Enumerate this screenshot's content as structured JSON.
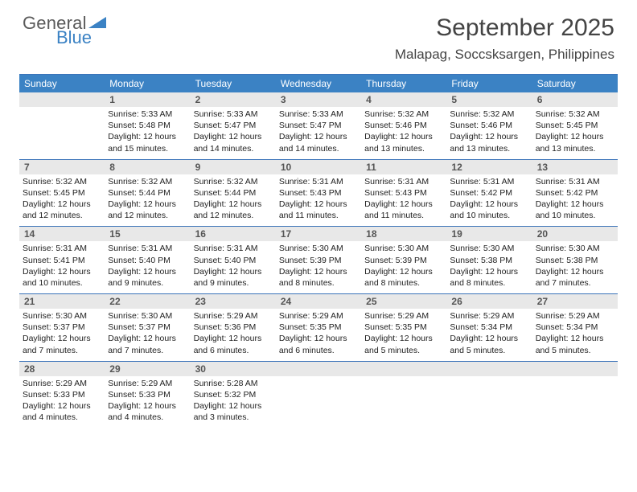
{
  "logo": {
    "word1": "General",
    "word2": "Blue",
    "shape_color": "#3b82c4",
    "word1_color": "#5a5a5a"
  },
  "title": "September 2025",
  "location": "Malapag, Soccsksargen, Philippines",
  "colors": {
    "header_bg": "#3b82c4",
    "header_text": "#ffffff",
    "daynum_bg": "#e8e8e8",
    "rule": "#3b73b9",
    "body_text": "#222222"
  },
  "font": {
    "title_size": 30,
    "location_size": 17,
    "header_size": 12,
    "body_size": 10.5
  },
  "day_names": [
    "Sunday",
    "Monday",
    "Tuesday",
    "Wednesday",
    "Thursday",
    "Friday",
    "Saturday"
  ],
  "weeks": [
    [
      {
        "n": "",
        "lines": []
      },
      {
        "n": "1",
        "lines": [
          "Sunrise: 5:33 AM",
          "Sunset: 5:48 PM",
          "Daylight: 12 hours and 15 minutes."
        ]
      },
      {
        "n": "2",
        "lines": [
          "Sunrise: 5:33 AM",
          "Sunset: 5:47 PM",
          "Daylight: 12 hours and 14 minutes."
        ]
      },
      {
        "n": "3",
        "lines": [
          "Sunrise: 5:33 AM",
          "Sunset: 5:47 PM",
          "Daylight: 12 hours and 14 minutes."
        ]
      },
      {
        "n": "4",
        "lines": [
          "Sunrise: 5:32 AM",
          "Sunset: 5:46 PM",
          "Daylight: 12 hours and 13 minutes."
        ]
      },
      {
        "n": "5",
        "lines": [
          "Sunrise: 5:32 AM",
          "Sunset: 5:46 PM",
          "Daylight: 12 hours and 13 minutes."
        ]
      },
      {
        "n": "6",
        "lines": [
          "Sunrise: 5:32 AM",
          "Sunset: 5:45 PM",
          "Daylight: 12 hours and 13 minutes."
        ]
      }
    ],
    [
      {
        "n": "7",
        "lines": [
          "Sunrise: 5:32 AM",
          "Sunset: 5:45 PM",
          "Daylight: 12 hours and 12 minutes."
        ]
      },
      {
        "n": "8",
        "lines": [
          "Sunrise: 5:32 AM",
          "Sunset: 5:44 PM",
          "Daylight: 12 hours and 12 minutes."
        ]
      },
      {
        "n": "9",
        "lines": [
          "Sunrise: 5:32 AM",
          "Sunset: 5:44 PM",
          "Daylight: 12 hours and 12 minutes."
        ]
      },
      {
        "n": "10",
        "lines": [
          "Sunrise: 5:31 AM",
          "Sunset: 5:43 PM",
          "Daylight: 12 hours and 11 minutes."
        ]
      },
      {
        "n": "11",
        "lines": [
          "Sunrise: 5:31 AM",
          "Sunset: 5:43 PM",
          "Daylight: 12 hours and 11 minutes."
        ]
      },
      {
        "n": "12",
        "lines": [
          "Sunrise: 5:31 AM",
          "Sunset: 5:42 PM",
          "Daylight: 12 hours and 10 minutes."
        ]
      },
      {
        "n": "13",
        "lines": [
          "Sunrise: 5:31 AM",
          "Sunset: 5:42 PM",
          "Daylight: 12 hours and 10 minutes."
        ]
      }
    ],
    [
      {
        "n": "14",
        "lines": [
          "Sunrise: 5:31 AM",
          "Sunset: 5:41 PM",
          "Daylight: 12 hours and 10 minutes."
        ]
      },
      {
        "n": "15",
        "lines": [
          "Sunrise: 5:31 AM",
          "Sunset: 5:40 PM",
          "Daylight: 12 hours and 9 minutes."
        ]
      },
      {
        "n": "16",
        "lines": [
          "Sunrise: 5:31 AM",
          "Sunset: 5:40 PM",
          "Daylight: 12 hours and 9 minutes."
        ]
      },
      {
        "n": "17",
        "lines": [
          "Sunrise: 5:30 AM",
          "Sunset: 5:39 PM",
          "Daylight: 12 hours and 8 minutes."
        ]
      },
      {
        "n": "18",
        "lines": [
          "Sunrise: 5:30 AM",
          "Sunset: 5:39 PM",
          "Daylight: 12 hours and 8 minutes."
        ]
      },
      {
        "n": "19",
        "lines": [
          "Sunrise: 5:30 AM",
          "Sunset: 5:38 PM",
          "Daylight: 12 hours and 8 minutes."
        ]
      },
      {
        "n": "20",
        "lines": [
          "Sunrise: 5:30 AM",
          "Sunset: 5:38 PM",
          "Daylight: 12 hours and 7 minutes."
        ]
      }
    ],
    [
      {
        "n": "21",
        "lines": [
          "Sunrise: 5:30 AM",
          "Sunset: 5:37 PM",
          "Daylight: 12 hours and 7 minutes."
        ]
      },
      {
        "n": "22",
        "lines": [
          "Sunrise: 5:30 AM",
          "Sunset: 5:37 PM",
          "Daylight: 12 hours and 7 minutes."
        ]
      },
      {
        "n": "23",
        "lines": [
          "Sunrise: 5:29 AM",
          "Sunset: 5:36 PM",
          "Daylight: 12 hours and 6 minutes."
        ]
      },
      {
        "n": "24",
        "lines": [
          "Sunrise: 5:29 AM",
          "Sunset: 5:35 PM",
          "Daylight: 12 hours and 6 minutes."
        ]
      },
      {
        "n": "25",
        "lines": [
          "Sunrise: 5:29 AM",
          "Sunset: 5:35 PM",
          "Daylight: 12 hours and 5 minutes."
        ]
      },
      {
        "n": "26",
        "lines": [
          "Sunrise: 5:29 AM",
          "Sunset: 5:34 PM",
          "Daylight: 12 hours and 5 minutes."
        ]
      },
      {
        "n": "27",
        "lines": [
          "Sunrise: 5:29 AM",
          "Sunset: 5:34 PM",
          "Daylight: 12 hours and 5 minutes."
        ]
      }
    ],
    [
      {
        "n": "28",
        "lines": [
          "Sunrise: 5:29 AM",
          "Sunset: 5:33 PM",
          "Daylight: 12 hours and 4 minutes."
        ]
      },
      {
        "n": "29",
        "lines": [
          "Sunrise: 5:29 AM",
          "Sunset: 5:33 PM",
          "Daylight: 12 hours and 4 minutes."
        ]
      },
      {
        "n": "30",
        "lines": [
          "Sunrise: 5:28 AM",
          "Sunset: 5:32 PM",
          "Daylight: 12 hours and 3 minutes."
        ]
      },
      {
        "n": "",
        "lines": []
      },
      {
        "n": "",
        "lines": []
      },
      {
        "n": "",
        "lines": []
      },
      {
        "n": "",
        "lines": []
      }
    ]
  ]
}
